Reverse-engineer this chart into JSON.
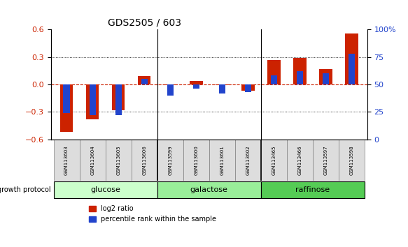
{
  "title": "GDS2505 / 603",
  "samples": [
    "GSM113603",
    "GSM113604",
    "GSM113605",
    "GSM113606",
    "GSM113599",
    "GSM113600",
    "GSM113601",
    "GSM113602",
    "GSM113465",
    "GSM113466",
    "GSM113597",
    "GSM113598"
  ],
  "log2_ratio": [
    -0.52,
    -0.38,
    -0.28,
    0.09,
    -0.01,
    0.04,
    -0.01,
    -0.07,
    0.27,
    0.29,
    0.17,
    0.56
  ],
  "percentile_rank": [
    24,
    22,
    22,
    55,
    40,
    46,
    42,
    43,
    58,
    62,
    60,
    78
  ],
  "groups": [
    {
      "label": "glucose",
      "start": 0,
      "end": 4,
      "color": "#ccffcc"
    },
    {
      "label": "galactose",
      "start": 4,
      "end": 8,
      "color": "#99ee99"
    },
    {
      "label": "raffinose",
      "start": 8,
      "end": 12,
      "color": "#55cc55"
    }
  ],
  "bar_color_red": "#cc2200",
  "bar_color_blue": "#2244cc",
  "ylim_left": [
    -0.6,
    0.6
  ],
  "ylim_right": [
    0,
    100
  ],
  "yticks_left": [
    -0.6,
    -0.3,
    0.0,
    0.3,
    0.6
  ],
  "yticks_right": [
    0,
    25,
    50,
    75,
    100
  ],
  "bar_width": 0.5,
  "blue_bar_width": 0.25,
  "background_color": "#ffffff",
  "legend_red_label": "log2 ratio",
  "legend_blue_label": "percentile rank within the sample"
}
